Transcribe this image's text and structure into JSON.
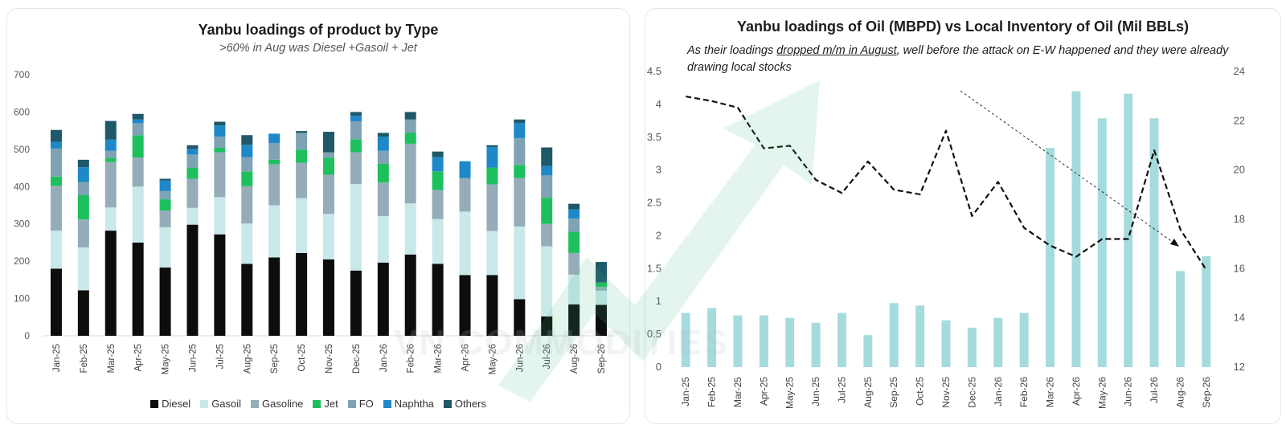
{
  "colors": {
    "diesel": "#0d0d0d",
    "gasoil": "#c9e8ea",
    "gasoline": "#95acb9",
    "jet": "#1ec05e",
    "fo": "#7fa3b4",
    "naphtha": "#1e88c8",
    "others": "#1f5868",
    "bar_light": "#a6dbdd",
    "line": "#111111"
  },
  "watermark": "VN COMMODITIES",
  "left_chart": {
    "title": "Yanbu loadings of product by Type",
    "subtitle": ">60% in Aug was Diesel +Gasoil + Jet"
  },
  "right_chart": {
    "title": "Yanbu loadings of Oil (MBPD) vs Local Inventory of Oil (Mil BBLs)",
    "annotation_pre": "As their loadings ",
    "annotation_underlined": "dropped m/m in August",
    "annotation_post": ", well before the attack on E-W happened and they were already drawing local stocks"
  },
  "chart_data": [
    {
      "type": "bar",
      "stacked": true,
      "title": "Yanbu loadings of product by Type",
      "subtitle": ">60% in Aug was Diesel +Gasoil + Jet",
      "categories": [
        "Jan-25",
        "Feb-25",
        "Mar-25",
        "Apr-25",
        "May-25",
        "Jun-25",
        "Jul-25",
        "Aug-25",
        "Sep-25",
        "Oct-25",
        "Nov-25",
        "Dec-25",
        "Jan-26",
        "Feb-26",
        "Mar-26",
        "Apr-26",
        "May-26",
        "Jun-26",
        "Jul-26",
        "Aug-26",
        "Sep-26"
      ],
      "ylim": [
        0,
        700
      ],
      "yticks": [
        0,
        100,
        200,
        300,
        400,
        500,
        600,
        700
      ],
      "legend_position": "bottom",
      "grid": false,
      "series": [
        {
          "name": "Diesel",
          "color_key": "diesel",
          "values": [
            180,
            122,
            282,
            250,
            183,
            298,
            272,
            193,
            210,
            222,
            205,
            175,
            196,
            218,
            193,
            163,
            163,
            98,
            52,
            84,
            83
          ]
        },
        {
          "name": "Gasoil",
          "color_key": "gasoil",
          "values": [
            102,
            115,
            62,
            150,
            108,
            45,
            100,
            108,
            140,
            147,
            122,
            232,
            125,
            137,
            120,
            170,
            118,
            195,
            188,
            80,
            38
          ]
        },
        {
          "name": "Gasoline",
          "color_key": "gasoline",
          "values": [
            120,
            75,
            122,
            78,
            45,
            78,
            120,
            100,
            110,
            95,
            105,
            85,
            90,
            160,
            78,
            90,
            125,
            130,
            60,
            58,
            10
          ]
        },
        {
          "name": "Jet",
          "color_key": "jet",
          "values": [
            25,
            65,
            10,
            60,
            30,
            30,
            12,
            40,
            12,
            35,
            45,
            35,
            50,
            30,
            50,
            0,
            45,
            35,
            70,
            57,
            12
          ]
        },
        {
          "name": "FO",
          "color_key": "fo",
          "values": [
            75,
            35,
            20,
            32,
            22,
            35,
            30,
            38,
            45,
            45,
            15,
            48,
            35,
            35,
            0,
            0,
            0,
            72,
            60,
            35,
            0
          ]
        },
        {
          "name": "Naphtha",
          "color_key": "naphtha",
          "values": [
            18,
            40,
            30,
            10,
            28,
            15,
            30,
            33,
            25,
            0,
            0,
            15,
            38,
            0,
            38,
            45,
            55,
            40,
            25,
            25,
            0
          ],
          "note": ""
        },
        {
          "name": "Others",
          "color_key": "others",
          "values": [
            32,
            20,
            50,
            15,
            5,
            10,
            10,
            26,
            0,
            5,
            55,
            10,
            10,
            20,
            15,
            0,
            5,
            10,
            50,
            15,
            55
          ]
        }
      ]
    },
    {
      "type": "bar+line",
      "title": "Yanbu loadings of Oil (MBPD) vs Local Inventory of Oil (Mil BBLs)",
      "categories": [
        "Jan-25",
        "Feb-25",
        "Mar-25",
        "Apr-25",
        "May-25",
        "Jun-25",
        "Jul-25",
        "Aug-25",
        "Sep-25",
        "Oct-25",
        "Nov-25",
        "Dec-25",
        "Jan-26",
        "Feb-26",
        "Mar-26",
        "Apr-26",
        "May-26",
        "Jun-26",
        "Jul-26",
        "Aug-26",
        "Sep-26"
      ],
      "ylim": [
        0,
        4.5
      ],
      "yticks": [
        0,
        0.5,
        1,
        1.5,
        2,
        2.5,
        3,
        3.5,
        4,
        4.5
      ],
      "y2lim": [
        12,
        24
      ],
      "y2ticks": [
        12,
        14,
        16,
        18,
        20,
        22,
        24
      ],
      "grid": false,
      "series": [
        {
          "axis": "right",
          "style": "bar",
          "color_key": "bar_light",
          "values": [
            14.2,
            14.4,
            14.1,
            14.1,
            14.0,
            13.8,
            14.2,
            13.3,
            14.6,
            14.5,
            13.9,
            13.6,
            14.0,
            14.2,
            20.9,
            23.2,
            22.1,
            23.1,
            22.1,
            15.9,
            16.5
          ]
        },
        {
          "axis": "left",
          "style": "dashed-line",
          "color_key": "line",
          "values": [
            4.12,
            4.05,
            3.95,
            3.33,
            3.37,
            2.85,
            2.65,
            3.13,
            2.7,
            2.63,
            3.6,
            2.3,
            2.82,
            2.12,
            1.85,
            1.68,
            1.95,
            1.95,
            3.3,
            2.1,
            1.48
          ]
        }
      ]
    }
  ]
}
